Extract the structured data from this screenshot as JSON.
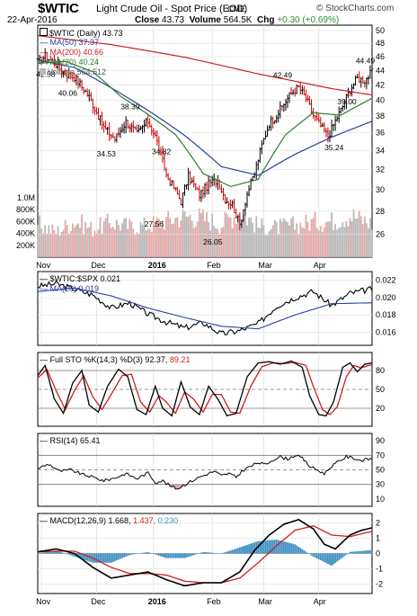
{
  "header": {
    "ticker": "$WTIC",
    "description": "Light Crude Oil - Spot Price (EOD)",
    "exchange": "CME",
    "brand": "© StockCharts.com",
    "date": "22-Apr-2016",
    "close_label": "Close",
    "close": "43.73",
    "volume_label": "Volume",
    "volume": "564.5K",
    "chg_label": "Chg",
    "chg": "+0.30 (+0.69%)",
    "chg_color": "#2e8b2e"
  },
  "colors": {
    "up": "#000000",
    "down": "#cc0000",
    "ma50": "#2b3f9e",
    "ma200": "#cc1f1f",
    "ma20": "#2e7d2e",
    "volume_up": "#b8b8b8",
    "volume_down": "#e3a9a9",
    "ratio": "#000000",
    "ratio_ma": "#2b3f9e",
    "sto_k": "#000000",
    "sto_d": "#cc1f1f",
    "rsi": "#000000",
    "rsi_fill_high": "#9bc39b",
    "rsi_fill_low": "#d9a3a3",
    "macd": "#000000",
    "signal": "#cc1f1f",
    "hist": "#3d8fc2"
  },
  "legends": {
    "price": "$WTIC (Daily) 43.73",
    "ma50": "MA(50) 37.37",
    "ma200": "MA(200) 40.66",
    "ma20": "MA(20) 40.24",
    "volume": "Volume 564,512",
    "ratio": "$WTIC:$SPX 0.021",
    "ratio_ma": "MA(20) 0.019",
    "sto_prefix": "Full STO %K(14,3) %D(3) 92.37,",
    "sto_d": "89.21",
    "rsi": "RSI(14) 65.41",
    "macd_prefix": "MACD(12,26,9) 1.668,",
    "macd_signal": "1.437,",
    "macd_hist": "0.230"
  },
  "x_axis": {
    "labels": [
      "Nov",
      "Dec",
      "2016",
      "Feb",
      "Mar",
      "Apr"
    ],
    "label_days": [
      2,
      32,
      63,
      95,
      123,
      153
    ],
    "year_label": "2016"
  },
  "chart_data": [
    {
      "type": "line",
      "title": "$WTIC Light Crude Oil - Spot Price (EOD)",
      "x_axis": "date (22-Oct-2015 to 22-Apr-2016)",
      "ylim": [
        25,
        50
      ],
      "y_ticks": [
        26,
        28,
        30,
        32,
        34,
        36,
        38,
        40,
        42,
        44,
        46,
        48,
        50
      ],
      "log_scale": true,
      "grid": true,
      "legend_position": "top-left",
      "series": [
        {
          "name": "$WTIC (Daily)",
          "style": "ohlc",
          "anchors_day": [
            0,
            4,
            10,
            14,
            20,
            28,
            36,
            42,
            48,
            54,
            60,
            64,
            70,
            74,
            78,
            82,
            88,
            94,
            98,
            102,
            106,
            110,
            114,
            118,
            122,
            126,
            130,
            134,
            138,
            142,
            146,
            150,
            154,
            158,
            162,
            166,
            170,
            174,
            178,
            182
          ],
          "anchors_value": [
            45.2,
            46.1,
            44.9,
            43.6,
            43.1,
            40.4,
            36.6,
            35.3,
            37.3,
            35.9,
            37.4,
            35.6,
            31.4,
            30.2,
            28.9,
            31.3,
            29.5,
            30.7,
            30.9,
            29.1,
            28.6,
            26.8,
            29.6,
            31.6,
            34.6,
            37.1,
            38.1,
            39.5,
            40.9,
            41.7,
            40.2,
            38.1,
            36.8,
            35.6,
            37.4,
            39.2,
            41.4,
            42.9,
            42.6,
            43.73
          ]
        },
        {
          "name": "MA(50)",
          "anchors_day": [
            0,
            20,
            40,
            60,
            80,
            100,
            120,
            140,
            160,
            182
          ],
          "anchors_value": [
            45.5,
            44.4,
            41.6,
            38.7,
            35.7,
            32.3,
            31.4,
            33.6,
            35.5,
            37.37
          ]
        },
        {
          "name": "MA(200)",
          "anchors_day": [
            0,
            40,
            80,
            120,
            160,
            182
          ],
          "anchors_value": [
            49.2,
            47.8,
            45.9,
            43.5,
            41.5,
            40.66
          ]
        },
        {
          "name": "MA(20)",
          "anchors_day": [
            0,
            15,
            30,
            45,
            60,
            75,
            90,
            105,
            120,
            135,
            150,
            165,
            182
          ],
          "anchors_value": [
            45.0,
            45.3,
            43.8,
            40.5,
            38.2,
            35.8,
            31.6,
            30.3,
            31.0,
            35.8,
            38.4,
            38.1,
            40.24
          ]
        }
      ],
      "annotations": [
        {
          "text": "42.58",
          "day": 4,
          "value": 42.58
        },
        {
          "text": "40.06",
          "day": 16,
          "value": 40.06
        },
        {
          "text": "34.53",
          "day": 37,
          "value": 34.53
        },
        {
          "text": "38.39",
          "day": 50,
          "value": 38.39
        },
        {
          "text": "34.82",
          "day": 67,
          "value": 34.82
        },
        {
          "text": "27.56",
          "day": 63,
          "value": 27.56
        },
        {
          "text": "26.05",
          "day": 95,
          "value": 26.05
        },
        {
          "text": "42.49",
          "day": 133,
          "value": 42.49
        },
        {
          "text": "35.24",
          "day": 161,
          "value": 35.24
        },
        {
          "text": "39.00",
          "day": 168,
          "value": 39.0
        },
        {
          "text": "44.49",
          "day": 178,
          "value": 44.49
        }
      ]
    },
    {
      "type": "bar",
      "title": "Volume",
      "y_ticks": [
        "200K",
        "400K",
        "600K",
        "800K",
        "1.0M"
      ],
      "y_tick_values": [
        200,
        400,
        600,
        800,
        1000
      ],
      "unit": "thousands of contracts",
      "anchors_day": [
        0,
        10,
        20,
        30,
        40,
        50,
        60,
        70,
        80,
        90,
        100,
        110,
        120,
        130,
        140,
        150,
        160,
        170,
        182
      ],
      "anchors_value": [
        560,
        430,
        610,
        480,
        590,
        520,
        540,
        620,
        700,
        660,
        560,
        780,
        520,
        500,
        540,
        600,
        610,
        720,
        565
      ]
    },
    {
      "type": "line",
      "title": "$WTIC:$SPX",
      "ylim": [
        0.0145,
        0.023
      ],
      "y_ticks": [
        0.016,
        0.018,
        0.02,
        0.022
      ],
      "y_tick_labels": [
        "0.016",
        "0.018",
        "0.020",
        "0.022"
      ],
      "series": [
        {
          "name": "$WTIC:$SPX",
          "anchors_day": [
            0,
            10,
            20,
            30,
            40,
            50,
            60,
            70,
            80,
            90,
            100,
            110,
            120,
            130,
            140,
            150,
            160,
            170,
            182
          ],
          "anchors_value": [
            0.0213,
            0.0216,
            0.021,
            0.0203,
            0.0188,
            0.0194,
            0.0181,
            0.0172,
            0.0165,
            0.0171,
            0.0158,
            0.0162,
            0.017,
            0.019,
            0.02,
            0.0207,
            0.0191,
            0.0205,
            0.021
          ]
        },
        {
          "name": "MA(20)",
          "anchors_day": [
            0,
            20,
            40,
            60,
            80,
            100,
            120,
            140,
            160,
            182
          ],
          "anchors_value": [
            0.0207,
            0.0211,
            0.0202,
            0.0188,
            0.0177,
            0.0167,
            0.0164,
            0.018,
            0.0193,
            0.0194
          ]
        }
      ]
    },
    {
      "type": "line",
      "title": "Full STO %K(14,3) %D(3)",
      "ylim": [
        0,
        100
      ],
      "y_ticks": [
        20,
        50,
        80
      ],
      "reference_lines": [
        20,
        50,
        80
      ],
      "series": [
        {
          "name": "%K",
          "anchors_day": [
            0,
            4,
            9,
            14,
            19,
            24,
            28,
            33,
            38,
            44,
            49,
            54,
            59,
            64,
            68,
            73,
            78,
            83,
            88,
            93,
            98,
            103,
            108,
            114,
            120,
            126,
            132,
            138,
            144,
            148,
            153,
            157,
            161,
            166,
            170,
            174,
            178,
            182
          ],
          "anchors_value": [
            72,
            88,
            35,
            12,
            60,
            80,
            25,
            14,
            55,
            82,
            70,
            18,
            10,
            55,
            20,
            8,
            62,
            22,
            10,
            55,
            35,
            8,
            12,
            70,
            92,
            94,
            90,
            95,
            85,
            40,
            10,
            8,
            30,
            85,
            92,
            78,
            90,
            92
          ]
        },
        {
          "name": "%D",
          "anchors_day": [
            0,
            5,
            10,
            15,
            20,
            25,
            30,
            35,
            40,
            46,
            51,
            56,
            61,
            66,
            70,
            75,
            80,
            85,
            90,
            95,
            100,
            105,
            110,
            116,
            122,
            128,
            134,
            140,
            146,
            150,
            155,
            159,
            163,
            168,
            172,
            176,
            180,
            182
          ],
          "anchors_value": [
            68,
            82,
            48,
            18,
            48,
            72,
            38,
            18,
            42,
            72,
            74,
            30,
            14,
            40,
            30,
            12,
            46,
            34,
            14,
            42,
            42,
            14,
            12,
            55,
            86,
            92,
            91,
            93,
            88,
            55,
            18,
            10,
            22,
            70,
            88,
            84,
            88,
            89
          ]
        }
      ]
    },
    {
      "type": "area",
      "title": "RSI(14)",
      "ylim": [
        0,
        100
      ],
      "y_ticks": [
        10,
        30,
        50,
        70,
        90
      ],
      "reference_lines": [
        30,
        50,
        70
      ],
      "series": [
        {
          "name": "RSI(14)",
          "anchors_day": [
            0,
            6,
            12,
            18,
            24,
            30,
            36,
            42,
            48,
            54,
            60,
            64,
            68,
            72,
            76,
            80,
            84,
            88,
            92,
            96,
            100,
            104,
            108,
            112,
            116,
            120,
            124,
            128,
            132,
            136,
            140,
            144,
            148,
            152,
            156,
            160,
            164,
            168,
            172,
            176,
            182
          ],
          "anchors_value": [
            52,
            58,
            48,
            50,
            44,
            40,
            35,
            39,
            45,
            38,
            46,
            33,
            35,
            28,
            24,
            30,
            35,
            40,
            44,
            48,
            42,
            45,
            40,
            50,
            55,
            60,
            57,
            64,
            68,
            65,
            70,
            66,
            55,
            50,
            45,
            55,
            62,
            68,
            66,
            63,
            65.41
          ]
        }
      ]
    },
    {
      "type": "line",
      "title": "MACD(12,26,9)",
      "ylim": [
        -2.6,
        2.6
      ],
      "y_ticks": [
        -2,
        -1,
        0,
        1,
        2
      ],
      "series": [
        {
          "name": "MACD",
          "anchors_day": [
            0,
            10,
            20,
            30,
            40,
            50,
            60,
            70,
            80,
            90,
            100,
            110,
            118,
            126,
            134,
            142,
            150,
            156,
            162,
            170,
            176,
            182
          ],
          "anchors_value": [
            0.1,
            0.3,
            0.0,
            -0.9,
            -1.6,
            -1.4,
            -1.2,
            -1.7,
            -2.1,
            -1.9,
            -1.9,
            -1.2,
            0.2,
            1.2,
            1.9,
            2.2,
            1.6,
            0.6,
            0.3,
            1.2,
            1.5,
            1.668
          ]
        },
        {
          "name": "Signal",
          "anchors_day": [
            0,
            10,
            20,
            30,
            40,
            50,
            60,
            70,
            80,
            90,
            100,
            110,
            120,
            130,
            140,
            150,
            160,
            170,
            182
          ],
          "anchors_value": [
            0.1,
            0.15,
            0.15,
            -0.3,
            -0.9,
            -1.3,
            -1.3,
            -1.4,
            -1.8,
            -1.9,
            -1.9,
            -1.6,
            -0.6,
            0.5,
            1.5,
            1.8,
            1.2,
            1.1,
            1.437
          ]
        },
        {
          "name": "Histogram",
          "style": "bar",
          "anchors_day": [
            0,
            10,
            20,
            30,
            40,
            50,
            60,
            70,
            80,
            90,
            100,
            110,
            120,
            130,
            140,
            150,
            160,
            170,
            182
          ],
          "anchors_value": [
            0.0,
            0.2,
            -0.2,
            -0.6,
            -0.6,
            -0.1,
            0.1,
            -0.3,
            -0.3,
            0.1,
            0.0,
            0.4,
            0.8,
            0.9,
            0.6,
            -0.2,
            -0.8,
            0.1,
            0.23
          ]
        }
      ]
    }
  ]
}
